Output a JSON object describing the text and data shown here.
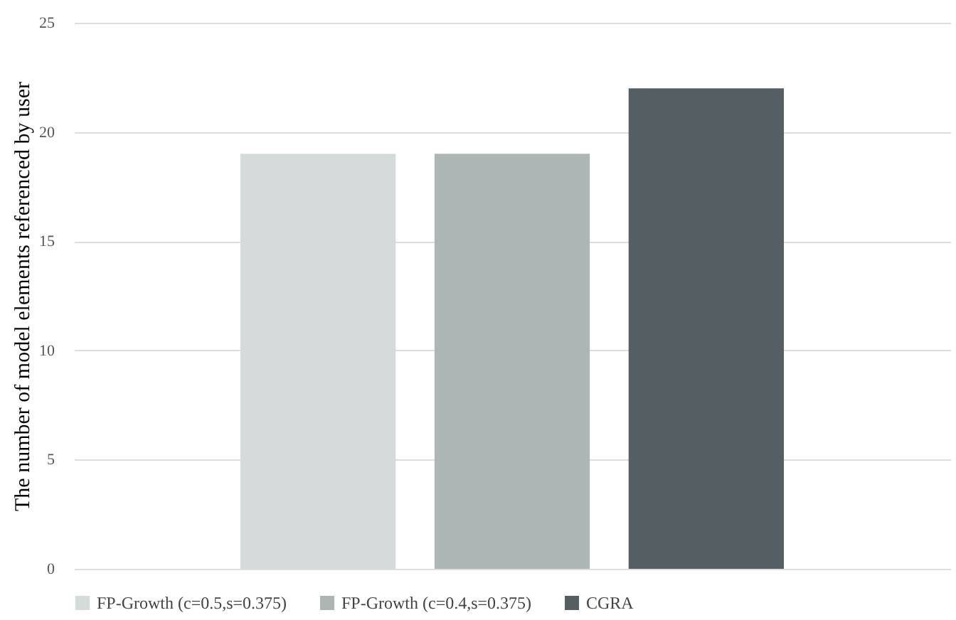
{
  "chart_data": {
    "type": "bar",
    "ylabel": "The number of model elements referenced by user",
    "categories": [
      null
    ],
    "series": [
      {
        "name": "FP-Growth (c=0.5,s=0.375)",
        "color": "#d5dbdb",
        "values": [
          19
        ]
      },
      {
        "name": "FP-Growth (c=0.4,s=0.375)",
        "color": "#adb5b5",
        "values": [
          19
        ]
      },
      {
        "name": "CGRA",
        "color": "#555e62",
        "values": [
          22
        ]
      }
    ],
    "ylim": [
      0,
      25
    ],
    "yticks": [
      0,
      5,
      10,
      15,
      20,
      25
    ],
    "grid": "y",
    "legend": "bottom",
    "tick_labels": "y"
  }
}
